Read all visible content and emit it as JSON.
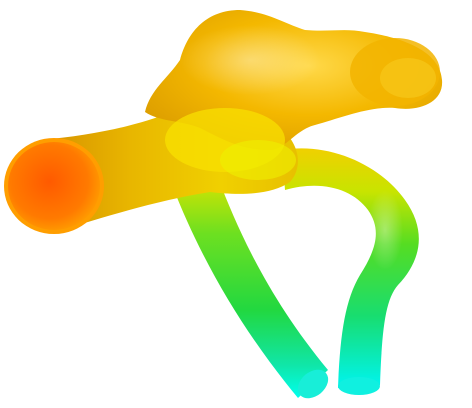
{
  "scene": {
    "background": "#ffffff",
    "colormap": [
      "#ff5a00",
      "#f5b800",
      "#e6e600",
      "#33dd22",
      "#00ffee"
    ]
  }
}
